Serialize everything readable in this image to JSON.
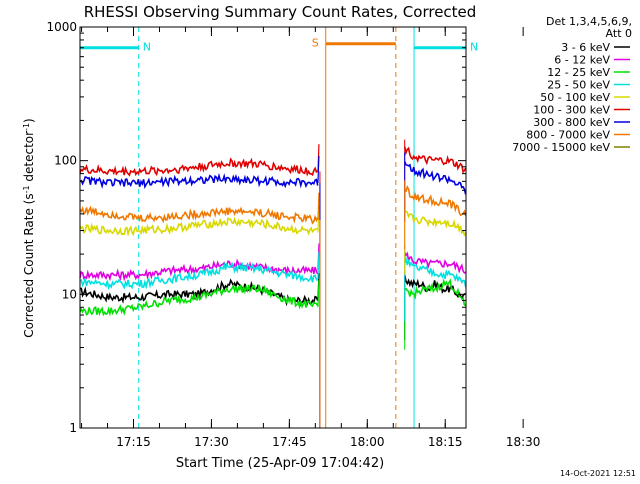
{
  "chart_data": {
    "type": "line",
    "title": "RHESSI Observing Summary Count Rates, Corrected",
    "xlabel": "Start Time (25-Apr-09 17:04:42)",
    "ylabel": "Corrected Count Rate (s⁻¹ detector⁻¹)",
    "ylabel_parts": [
      "Corrected Count Rate (s",
      "-1",
      " detector",
      "-1",
      ")"
    ],
    "yscale": "log",
    "ylim": [
      1,
      1000
    ],
    "xlim_minutes": [
      4.7,
      79.0
    ],
    "x_unit": "minutes after 17:00 UT",
    "x_ticks": [
      {
        "label": "17:15",
        "minutes": 15
      },
      {
        "label": "17:30",
        "minutes": 30
      },
      {
        "label": "17:45",
        "minutes": 45
      },
      {
        "label": "18:00",
        "minutes": 60
      },
      {
        "label": "18:15",
        "minutes": 75
      },
      {
        "label": "18:30",
        "minutes": 90
      }
    ],
    "y_ticks": [
      {
        "label": "1",
        "value": 1
      },
      {
        "label": "10",
        "value": 10
      },
      {
        "label": "100",
        "value": 100
      },
      {
        "label": "1000",
        "value": 1000
      }
    ],
    "legend_header": [
      "Det 1,3,4,5,6,9,",
      "Att 0"
    ],
    "legend_position": "right",
    "grid": false,
    "footer_timestamp": "14-Oct-2021 12:51",
    "gap_minutes": [
      50.5,
      67.2
    ],
    "series": [
      {
        "name": "3 - 6 keV",
        "color": "#000000",
        "pre": [
          10.5,
          9.5,
          9.5,
          10,
          10,
          12,
          11,
          9,
          9
        ],
        "post": [
          13,
          12,
          12,
          11,
          12,
          11,
          11,
          10,
          9.5
        ]
      },
      {
        "name": "6 - 12 keV",
        "color": "#e000e0",
        "pre": [
          14,
          14,
          14,
          15,
          15.5,
          17,
          16,
          15,
          15
        ],
        "post": [
          20,
          18,
          17.5,
          17,
          17,
          17,
          17,
          16,
          15
        ]
      },
      {
        "name": "12 - 25 keV",
        "color": "#00e000",
        "pre": [
          7.5,
          7.5,
          8,
          9,
          9.5,
          11,
          11,
          9,
          8
        ],
        "post": [
          11,
          10,
          10.5,
          11,
          11,
          12,
          12,
          10,
          8
        ]
      },
      {
        "name": "25 - 50 keV",
        "color": "#00e0e0",
        "pre": [
          12.5,
          12,
          12,
          13,
          14,
          16,
          15.5,
          14,
          13
        ],
        "post": [
          18,
          16,
          15.5,
          15,
          14.5,
          14,
          14,
          13,
          12
        ]
      },
      {
        "name": "50 - 100 keV",
        "color": "#d8d800",
        "pre": [
          31,
          30,
          30,
          31,
          33,
          35,
          34,
          31,
          29
        ],
        "post": [
          40,
          37,
          36,
          35,
          35,
          35,
          34,
          32,
          29
        ]
      },
      {
        "name": "100 - 300 keV",
        "color": "#e00000",
        "pre": [
          86,
          83,
          83,
          85,
          90,
          96,
          94,
          87,
          83
        ],
        "post": [
          125,
          110,
          103,
          100,
          100,
          100,
          98,
          92,
          84
        ]
      },
      {
        "name": "300 - 800 keV",
        "color": "#0000e0",
        "pre": [
          72,
          68,
          68,
          70,
          72,
          73,
          71,
          69,
          68
        ],
        "post": [
          100,
          87,
          82,
          79,
          76,
          74,
          72,
          66,
          58
        ]
      },
      {
        "name": "800 - 7000 keV",
        "color": "#f07800",
        "pre": [
          43,
          40,
          37,
          38,
          40,
          42,
          41,
          38,
          36
        ],
        "post": [
          62,
          55,
          52,
          51,
          50,
          48,
          47,
          43,
          38
        ]
      },
      {
        "name": "7000 - 15000 keV",
        "color": "#808000",
        "pre": [],
        "post": []
      }
    ],
    "flags": [
      {
        "label": "N",
        "color": "#00e0e0",
        "start": 4.7,
        "end": 16.0,
        "level": 700,
        "end_dashed": true
      },
      {
        "label": "N",
        "color": "#00e0e0",
        "start": 69.0,
        "end": 79.0,
        "level": 700,
        "end_dashed": true
      },
      {
        "label": "S",
        "color": "#f07800",
        "start": 52.0,
        "end": 65.5,
        "level": 750,
        "end_dashed": true
      }
    ]
  }
}
